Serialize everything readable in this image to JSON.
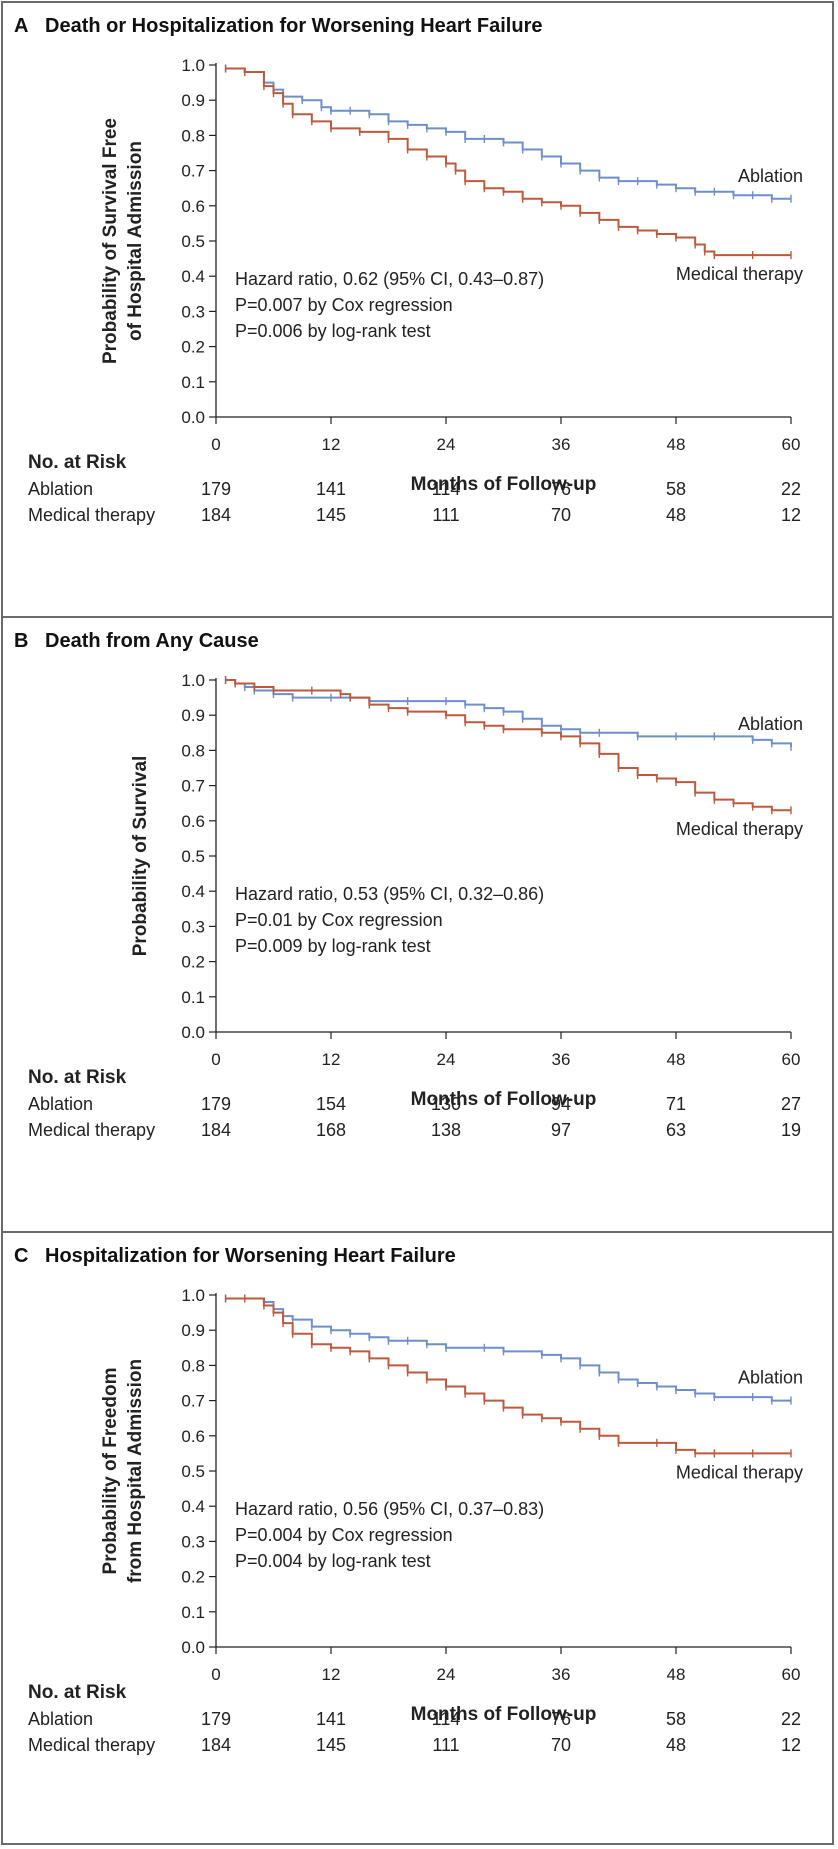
{
  "colors": {
    "ablation": "#6e8fc9",
    "medical_therapy": "#bd5a3d",
    "axis": "#222222",
    "border": "#6b6b6b"
  },
  "panels": [
    {
      "letter": "A",
      "title": "Death or Hospitalization for Worsening Heart Failure",
      "ylabel_lines": [
        "Probability of Survival Free",
        "of Hospital Admission"
      ],
      "stats": [
        "Hazard ratio, 0.62 (95% CI, 0.43–0.87)",
        "P=0.007 by Cox regression",
        "P=0.006 by log-rank test"
      ],
      "risk": {
        "heading": "No. at Risk",
        "rows": [
          {
            "label": "Ablation",
            "values": [
              "179",
              "141",
              "114",
              "76",
              "58",
              "22"
            ]
          },
          {
            "label": "Medical therapy",
            "values": [
              "184",
              "145",
              "111",
              "70",
              "48",
              "12"
            ]
          }
        ]
      }
    },
    {
      "letter": "B",
      "title": "Death from Any Cause",
      "ylabel_lines": [
        "Probability of Survival"
      ],
      "stats": [
        "Hazard ratio, 0.53 (95% CI, 0.32–0.86)",
        "P=0.01 by Cox regression",
        "P=0.009 by log-rank test"
      ],
      "risk": {
        "heading": "No. at Risk",
        "rows": [
          {
            "label": "Ablation",
            "values": [
              "179",
              "154",
              "130",
              "94",
              "71",
              "27"
            ]
          },
          {
            "label": "Medical therapy",
            "values": [
              "184",
              "168",
              "138",
              "97",
              "63",
              "19"
            ]
          }
        ]
      }
    },
    {
      "letter": "C",
      "title": "Hospitalization for Worsening Heart Failure",
      "ylabel_lines": [
        "Probability of Freedom",
        "from Hospital Admission"
      ],
      "stats": [
        "Hazard ratio, 0.56 (95% CI, 0.37–0.83)",
        "P=0.004 by Cox regression",
        "P=0.004 by log-rank test"
      ],
      "risk": {
        "heading": "No. at Risk",
        "rows": [
          {
            "label": "Ablation",
            "values": [
              "179",
              "141",
              "114",
              "76",
              "58",
              "22"
            ]
          },
          {
            "label": "Medical therapy",
            "values": [
              "184",
              "145",
              "111",
              "70",
              "48",
              "12"
            ]
          }
        ]
      }
    }
  ],
  "chart_data": [
    {
      "type": "line",
      "title": "Death or Hospitalization for Worsening Heart Failure",
      "xlabel": "Months of Follow-up",
      "ylabel": "Probability of Survival Free of Hospital Admission",
      "xlim": [
        0,
        60
      ],
      "ylim": [
        0,
        1.0
      ],
      "xticks": [
        "0",
        "12",
        "24",
        "36",
        "48",
        "60"
      ],
      "yticks": [
        "0.0",
        "0.1",
        "0.2",
        "0.3",
        "0.4",
        "0.5",
        "0.6",
        "0.7",
        "0.8",
        "0.9",
        "1.0"
      ],
      "series": [
        {
          "name": "Ablation",
          "color": "#6e8fc9",
          "label_pos": "above-end",
          "points": [
            [
              1,
              0.99
            ],
            [
              3,
              0.98
            ],
            [
              5,
              0.95
            ],
            [
              6,
              0.93
            ],
            [
              7,
              0.91
            ],
            [
              9,
              0.9
            ],
            [
              11,
              0.88
            ],
            [
              12,
              0.87
            ],
            [
              14,
              0.87
            ],
            [
              16,
              0.86
            ],
            [
              18,
              0.84
            ],
            [
              20,
              0.83
            ],
            [
              22,
              0.82
            ],
            [
              24,
              0.81
            ],
            [
              26,
              0.79
            ],
            [
              28,
              0.79
            ],
            [
              30,
              0.78
            ],
            [
              32,
              0.76
            ],
            [
              34,
              0.74
            ],
            [
              36,
              0.72
            ],
            [
              38,
              0.7
            ],
            [
              40,
              0.68
            ],
            [
              42,
              0.67
            ],
            [
              44,
              0.67
            ],
            [
              46,
              0.66
            ],
            [
              48,
              0.65
            ],
            [
              50,
              0.64
            ],
            [
              52,
              0.64
            ],
            [
              54,
              0.63
            ],
            [
              56,
              0.63
            ],
            [
              58,
              0.62
            ],
            [
              60,
              0.62
            ]
          ]
        },
        {
          "name": "Medical therapy",
          "color": "#bd5a3d",
          "label_pos": "below-end",
          "points": [
            [
              1,
              0.99
            ],
            [
              3,
              0.98
            ],
            [
              5,
              0.94
            ],
            [
              6,
              0.92
            ],
            [
              7,
              0.89
            ],
            [
              8,
              0.86
            ],
            [
              10,
              0.84
            ],
            [
              12,
              0.82
            ],
            [
              15,
              0.81
            ],
            [
              18,
              0.79
            ],
            [
              20,
              0.76
            ],
            [
              22,
              0.74
            ],
            [
              24,
              0.72
            ],
            [
              25,
              0.7
            ],
            [
              26,
              0.67
            ],
            [
              28,
              0.65
            ],
            [
              30,
              0.64
            ],
            [
              32,
              0.62
            ],
            [
              34,
              0.61
            ],
            [
              36,
              0.6
            ],
            [
              38,
              0.58
            ],
            [
              40,
              0.56
            ],
            [
              42,
              0.54
            ],
            [
              44,
              0.53
            ],
            [
              46,
              0.52
            ],
            [
              48,
              0.51
            ],
            [
              50,
              0.49
            ],
            [
              51,
              0.47
            ],
            [
              52,
              0.46
            ],
            [
              56,
              0.46
            ],
            [
              60,
              0.46
            ]
          ]
        }
      ]
    },
    {
      "type": "line",
      "title": "Death from Any Cause",
      "xlabel": "Months of Follow-up",
      "ylabel": "Probability of Survival",
      "xlim": [
        0,
        60
      ],
      "ylim": [
        0,
        1.0
      ],
      "xticks": [
        "0",
        "12",
        "24",
        "36",
        "48",
        "60"
      ],
      "yticks": [
        "0.0",
        "0.1",
        "0.2",
        "0.3",
        "0.4",
        "0.5",
        "0.6",
        "0.7",
        "0.8",
        "0.9",
        "1.0"
      ],
      "series": [
        {
          "name": "Ablation",
          "color": "#6e8fc9",
          "label_pos": "above-end",
          "points": [
            [
              1,
              1.0
            ],
            [
              2,
              0.99
            ],
            [
              3,
              0.98
            ],
            [
              4,
              0.97
            ],
            [
              6,
              0.96
            ],
            [
              8,
              0.95
            ],
            [
              12,
              0.95
            ],
            [
              14,
              0.95
            ],
            [
              16,
              0.94
            ],
            [
              20,
              0.94
            ],
            [
              24,
              0.94
            ],
            [
              26,
              0.93
            ],
            [
              28,
              0.92
            ],
            [
              30,
              0.91
            ],
            [
              32,
              0.89
            ],
            [
              34,
              0.87
            ],
            [
              36,
              0.86
            ],
            [
              38,
              0.85
            ],
            [
              40,
              0.85
            ],
            [
              44,
              0.84
            ],
            [
              48,
              0.84
            ],
            [
              52,
              0.84
            ],
            [
              56,
              0.83
            ],
            [
              58,
              0.82
            ],
            [
              60,
              0.81
            ]
          ]
        },
        {
          "name": "Medical therapy",
          "color": "#bd5a3d",
          "label_pos": "below-end",
          "points": [
            [
              1,
              1.0
            ],
            [
              2,
              0.99
            ],
            [
              4,
              0.98
            ],
            [
              6,
              0.97
            ],
            [
              10,
              0.97
            ],
            [
              13,
              0.96
            ],
            [
              14,
              0.95
            ],
            [
              16,
              0.93
            ],
            [
              18,
              0.92
            ],
            [
              20,
              0.91
            ],
            [
              24,
              0.9
            ],
            [
              26,
              0.88
            ],
            [
              28,
              0.87
            ],
            [
              30,
              0.86
            ],
            [
              34,
              0.85
            ],
            [
              36,
              0.84
            ],
            [
              38,
              0.82
            ],
            [
              40,
              0.79
            ],
            [
              42,
              0.75
            ],
            [
              44,
              0.73
            ],
            [
              46,
              0.72
            ],
            [
              48,
              0.71
            ],
            [
              50,
              0.68
            ],
            [
              52,
              0.66
            ],
            [
              54,
              0.65
            ],
            [
              56,
              0.64
            ],
            [
              58,
              0.63
            ],
            [
              60,
              0.63
            ]
          ]
        }
      ]
    },
    {
      "type": "line",
      "title": "Hospitalization for Worsening Heart Failure",
      "xlabel": "Months of Follow-up",
      "ylabel": "Probability of Freedom from Hospital Admission",
      "xlim": [
        0,
        60
      ],
      "ylim": [
        0,
        1.0
      ],
      "xticks": [
        "0",
        "12",
        "24",
        "36",
        "48",
        "60"
      ],
      "yticks": [
        "0.0",
        "0.1",
        "0.2",
        "0.3",
        "0.4",
        "0.5",
        "0.6",
        "0.7",
        "0.8",
        "0.9",
        "1.0"
      ],
      "series": [
        {
          "name": "Ablation",
          "color": "#6e8fc9",
          "label_pos": "above-end",
          "points": [
            [
              1,
              0.99
            ],
            [
              3,
              0.99
            ],
            [
              5,
              0.98
            ],
            [
              6,
              0.96
            ],
            [
              7,
              0.94
            ],
            [
              8,
              0.93
            ],
            [
              10,
              0.91
            ],
            [
              12,
              0.9
            ],
            [
              14,
              0.89
            ],
            [
              16,
              0.88
            ],
            [
              18,
              0.87
            ],
            [
              20,
              0.87
            ],
            [
              22,
              0.86
            ],
            [
              24,
              0.85
            ],
            [
              28,
              0.85
            ],
            [
              30,
              0.84
            ],
            [
              34,
              0.83
            ],
            [
              36,
              0.82
            ],
            [
              38,
              0.8
            ],
            [
              40,
              0.78
            ],
            [
              42,
              0.76
            ],
            [
              44,
              0.75
            ],
            [
              46,
              0.74
            ],
            [
              48,
              0.73
            ],
            [
              50,
              0.72
            ],
            [
              52,
              0.71
            ],
            [
              56,
              0.71
            ],
            [
              58,
              0.7
            ],
            [
              60,
              0.7
            ]
          ]
        },
        {
          "name": "Medical therapy",
          "color": "#bd5a3d",
          "label_pos": "below-end",
          "points": [
            [
              1,
              0.99
            ],
            [
              3,
              0.99
            ],
            [
              5,
              0.97
            ],
            [
              6,
              0.95
            ],
            [
              7,
              0.92
            ],
            [
              8,
              0.89
            ],
            [
              10,
              0.86
            ],
            [
              12,
              0.85
            ],
            [
              14,
              0.84
            ],
            [
              16,
              0.82
            ],
            [
              18,
              0.8
            ],
            [
              20,
              0.78
            ],
            [
              22,
              0.76
            ],
            [
              24,
              0.74
            ],
            [
              26,
              0.72
            ],
            [
              28,
              0.7
            ],
            [
              30,
              0.68
            ],
            [
              32,
              0.66
            ],
            [
              34,
              0.65
            ],
            [
              36,
              0.64
            ],
            [
              38,
              0.62
            ],
            [
              40,
              0.6
            ],
            [
              42,
              0.58
            ],
            [
              46,
              0.58
            ],
            [
              48,
              0.56
            ],
            [
              50,
              0.55
            ],
            [
              52,
              0.55
            ],
            [
              56,
              0.55
            ],
            [
              60,
              0.55
            ]
          ]
        }
      ]
    }
  ]
}
